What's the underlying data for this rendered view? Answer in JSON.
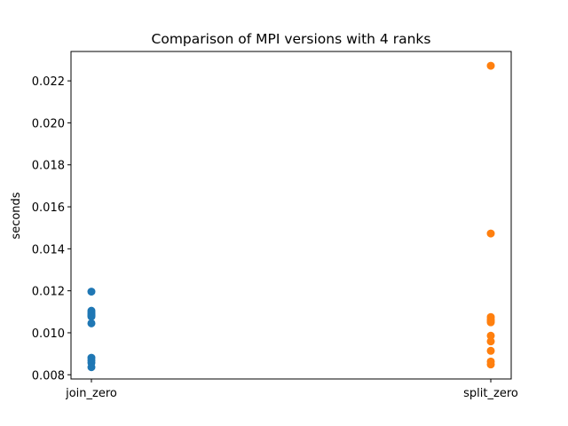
{
  "chart_data": {
    "type": "scatter",
    "title": "Comparison of MPI versions with 4 ranks",
    "xlabel": "",
    "ylabel": "seconds",
    "categories": [
      "join_zero",
      "split_zero"
    ],
    "ylim": [
      0.0078,
      0.0234
    ],
    "yticks": [
      "0.008",
      "0.010",
      "0.012",
      "0.014",
      "0.016",
      "0.018",
      "0.020",
      "0.022"
    ],
    "grid": false,
    "legend": "none",
    "series": [
      {
        "category": "join_zero",
        "color": "#1f77b4",
        "values": [
          0.01196,
          0.01105,
          0.01096,
          0.01089,
          0.01082,
          0.01077,
          0.01045,
          0.00881,
          0.00869,
          0.00857,
          0.00836
        ]
      },
      {
        "category": "split_zero",
        "color": "#ff7f0e",
        "values": [
          0.02272,
          0.01473,
          0.01075,
          0.01064,
          0.01057,
          0.0105,
          0.00986,
          0.00959,
          0.00914,
          0.00863,
          0.00849
        ]
      }
    ]
  }
}
